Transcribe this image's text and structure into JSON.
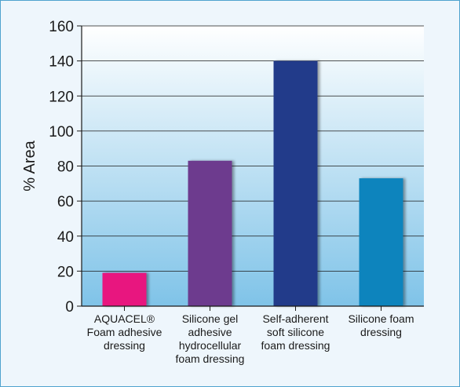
{
  "chart_data": {
    "type": "bar",
    "ylabel": "% Area",
    "xlabel": "",
    "ylim": [
      0,
      160
    ],
    "yticks": [
      0,
      20,
      40,
      60,
      80,
      100,
      120,
      140,
      160
    ],
    "grid": true,
    "categories": [
      [
        "AQUACEL®",
        "Foam adhesive",
        "dressing"
      ],
      [
        "Silicone gel",
        "adhesive",
        "hydrocellular",
        "foam dressing"
      ],
      [
        "Self-adherent",
        "soft silicone",
        "foam dressing"
      ],
      [
        "Silicone foam",
        "dressing"
      ]
    ],
    "values": [
      19,
      83,
      140,
      73
    ],
    "colors": [
      "#e8137f",
      "#6d3a8e",
      "#233a8a",
      "#0a84bd"
    ]
  },
  "colors": {
    "plot_top": "#ffffff",
    "plot_bottom": "#7fc3e8",
    "border": "#4fa3cf"
  }
}
